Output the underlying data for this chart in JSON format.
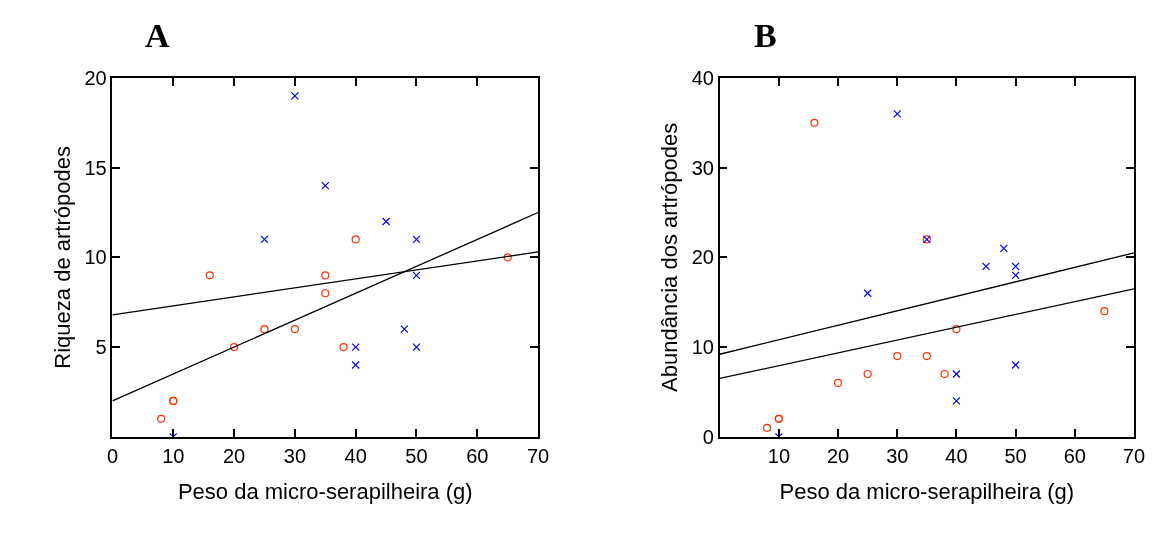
{
  "chart_data": [
    {
      "type": "scatter",
      "title": "A",
      "xlabel": "Peso da micro-serapilheira (g)",
      "ylabel": "Riqueza de artrópodes",
      "xlim": [
        0,
        70
      ],
      "ylim": [
        0,
        20
      ],
      "xticks": [
        0,
        10,
        20,
        30,
        40,
        50,
        60,
        70
      ],
      "yticks": [
        5,
        10,
        15,
        20
      ],
      "series": [
        {
          "marker": "circle",
          "color": "#ff3300",
          "x": [
            8,
            10,
            10,
            16,
            20,
            25,
            30,
            35,
            35,
            38,
            40,
            65
          ],
          "values": [
            1,
            2,
            2,
            9,
            5,
            6,
            6,
            9,
            8,
            5,
            11,
            10
          ]
        },
        {
          "marker": "cross",
          "color": "#0000ff",
          "x": [
            10,
            25,
            30,
            35,
            40,
            40,
            45,
            48,
            50,
            50,
            50
          ],
          "values": [
            0,
            11,
            19,
            14,
            5,
            4,
            12,
            6,
            11,
            9,
            5
          ]
        },
        {
          "type": "line",
          "marker": "none",
          "color": "#000000",
          "x": [
            0,
            70
          ],
          "values": [
            2.0,
            12.5
          ]
        },
        {
          "type": "line",
          "marker": "none",
          "color": "#000000",
          "x": [
            0,
            70
          ],
          "values": [
            6.8,
            10.3
          ]
        }
      ]
    },
    {
      "type": "scatter",
      "title": "B",
      "xlabel": "Peso da micro-serapilheira (g)",
      "ylabel": "Abundância dos artrópodes",
      "xlim": [
        0,
        70
      ],
      "ylim": [
        0,
        40
      ],
      "xticks": [
        10,
        20,
        30,
        40,
        50,
        60,
        70
      ],
      "yticks": [
        0,
        10,
        20,
        30,
        40
      ],
      "series": [
        {
          "marker": "circle",
          "color": "#ff3300",
          "x": [
            8,
            10,
            10,
            16,
            20,
            25,
            30,
            35,
            35,
            38,
            40,
            65
          ],
          "values": [
            1,
            2,
            2,
            35,
            6,
            7,
            9,
            9,
            22,
            7,
            12,
            14
          ]
        },
        {
          "marker": "cross",
          "color": "#0000ff",
          "x": [
            10,
            25,
            30,
            35,
            40,
            40,
            45,
            48,
            50,
            50,
            50
          ],
          "values": [
            0,
            16,
            36,
            22,
            7,
            4,
            19,
            21,
            19,
            18,
            8
          ]
        },
        {
          "type": "line",
          "marker": "none",
          "color": "#000000",
          "x": [
            0,
            70
          ],
          "values": [
            9.2,
            20.5
          ]
        },
        {
          "type": "line",
          "marker": "none",
          "color": "#000000",
          "x": [
            0,
            70
          ],
          "values": [
            6.5,
            16.5
          ]
        }
      ]
    }
  ]
}
